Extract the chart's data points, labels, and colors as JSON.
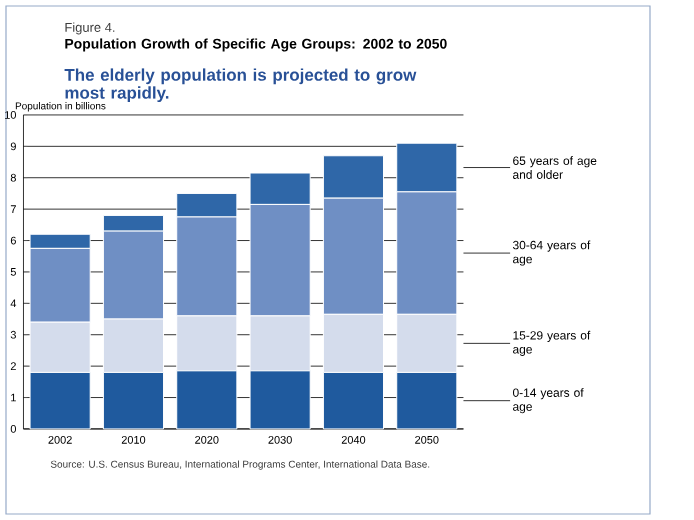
{
  "chart_data": {
    "type": "bar",
    "title": "Population Growth of Specific Age Groups: 2002 to 2050",
    "subtitle": "The elderly population is projected to grow most rapidly.",
    "ylabel": "Population in billions",
    "annotations": [
      "Figure 4.",
      "Source: U.S. Census Bureau, International Programs Center, International Data Base."
    ],
    "categories": [
      "2002",
      "2010",
      "2020",
      "2030",
      "2040",
      "2050"
    ],
    "stacked": true,
    "grid": "y",
    "ylim": [
      0,
      10
    ],
    "yticks": [
      0,
      1,
      2,
      3,
      4,
      5,
      6,
      7,
      8,
      9,
      10
    ],
    "series": [
      {
        "name": "0-14 years of age",
        "color": "#1f5a9e",
        "values": [
          1.8,
          1.8,
          1.85,
          1.85,
          1.8,
          1.8
        ]
      },
      {
        "name": "15-29 years of age",
        "color": "#d4dcec",
        "values": [
          1.6,
          1.7,
          1.75,
          1.75,
          1.85,
          1.85
        ]
      },
      {
        "name": "30-64 years of age",
        "color": "#6f8fc4",
        "values": [
          2.35,
          2.8,
          3.15,
          3.55,
          3.7,
          3.9
        ]
      },
      {
        "name": "65 years of age and older",
        "color": "#2f67a8",
        "values": [
          0.45,
          0.5,
          0.75,
          1.0,
          1.35,
          1.55
        ]
      }
    ]
  }
}
